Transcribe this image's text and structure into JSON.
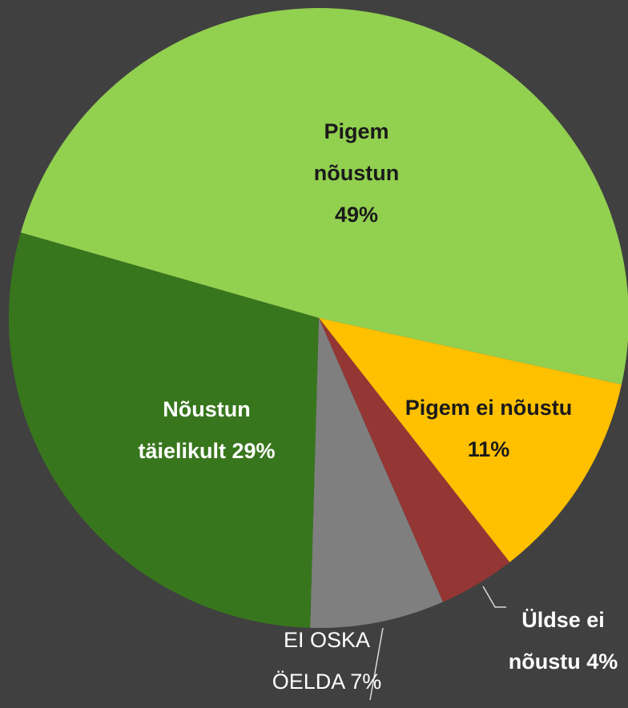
{
  "chart_data": {
    "type": "pie",
    "categories": [
      "Pigem nõustun",
      "Pigem ei nõustu",
      "Üldse ei nõustu",
      "EI OSKA ÖELDA",
      "Nõustun täielikult"
    ],
    "values": [
      49,
      11,
      4,
      7,
      29
    ],
    "value_labels": [
      "49%",
      "11%",
      "4%",
      "7%",
      "29%"
    ],
    "colors": [
      "#92d050",
      "#ffc000",
      "#943634",
      "#7f7f7f",
      "#38761d"
    ]
  }
}
